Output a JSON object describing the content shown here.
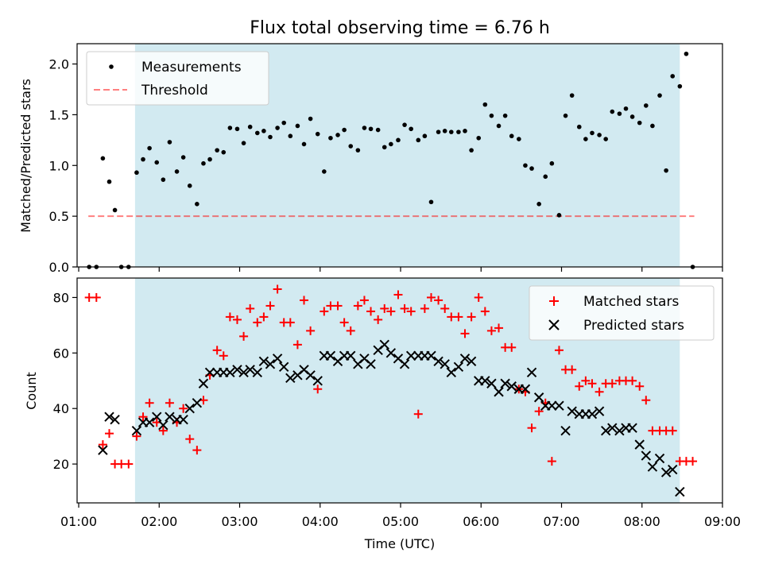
{
  "title": "Flux total observing time = 6.76 h",
  "x_label": "Time (UTC)",
  "x_ticks": [
    "01:00",
    "02:00",
    "03:00",
    "04:00",
    "05:00",
    "06:00",
    "07:00",
    "08:00",
    "09:00"
  ],
  "colors": {
    "observing_window": "#add8e6",
    "threshold": "#ff0000",
    "measurements": "#000000",
    "matched": "#ff0000",
    "predicted": "#000000"
  },
  "chart_data": [
    {
      "type": "scatter",
      "ylabel": "Matched/Predicted stars",
      "x_unit": "hours UTC",
      "xlim": [
        0.98,
        9.0
      ],
      "ylim": [
        0.0,
        2.2
      ],
      "yticks": [
        "0.0",
        "0.5",
        "1.0",
        "1.5",
        "2.0"
      ],
      "ytick_values": [
        0.0,
        0.5,
        1.0,
        1.5,
        2.0
      ],
      "shaded_window": [
        1.7,
        8.47
      ],
      "threshold": {
        "y": 0.5,
        "x_range": [
          1.12,
          8.65
        ]
      },
      "legend_position": "upper-left",
      "legend": {
        "measurements": "Measurements",
        "threshold": "Threshold"
      },
      "series": [
        {
          "name": "Measurements",
          "x": [
            1.13,
            1.22,
            1.3,
            1.38,
            1.45,
            1.53,
            1.62,
            1.72,
            1.8,
            1.88,
            1.97,
            2.05,
            2.13,
            2.22,
            2.3,
            2.38,
            2.47,
            2.55,
            2.63,
            2.72,
            2.8,
            2.88,
            2.97,
            3.05,
            3.13,
            3.22,
            3.3,
            3.38,
            3.47,
            3.55,
            3.63,
            3.72,
            3.8,
            3.88,
            3.97,
            4.05,
            4.13,
            4.22,
            4.3,
            4.38,
            4.47,
            4.55,
            4.63,
            4.72,
            4.8,
            4.88,
            4.97,
            5.05,
            5.13,
            5.22,
            5.3,
            5.38,
            5.47,
            5.55,
            5.63,
            5.72,
            5.8,
            5.88,
            5.97,
            6.05,
            6.13,
            6.22,
            6.3,
            6.38,
            6.47,
            6.55,
            6.63,
            6.72,
            6.8,
            6.88,
            6.97,
            7.05,
            7.13,
            7.22,
            7.3,
            7.38,
            7.47,
            7.55,
            7.63,
            7.72,
            7.8,
            7.88,
            7.97,
            8.05,
            8.13,
            8.22,
            8.3,
            8.38,
            8.47,
            8.55,
            8.63
          ],
          "y": [
            0.0,
            0.0,
            1.07,
            0.84,
            0.56,
            0.0,
            0.0,
            0.93,
            1.06,
            1.17,
            1.03,
            0.86,
            1.23,
            0.94,
            1.08,
            0.8,
            0.62,
            1.02,
            1.06,
            1.15,
            1.13,
            1.37,
            1.36,
            1.22,
            1.38,
            1.32,
            1.34,
            1.28,
            1.37,
            1.42,
            1.29,
            1.39,
            1.21,
            1.46,
            1.31,
            0.94,
            1.27,
            1.3,
            1.35,
            1.19,
            1.15,
            1.37,
            1.36,
            1.35,
            1.18,
            1.21,
            1.25,
            1.4,
            1.36,
            1.25,
            1.29,
            0.64,
            1.33,
            1.34,
            1.33,
            1.33,
            1.34,
            1.15,
            1.27,
            1.6,
            1.49,
            1.39,
            1.49,
            1.29,
            1.26,
            1.0,
            0.97,
            0.62,
            0.89,
            1.02,
            0.51,
            1.49,
            1.69,
            1.38,
            1.26,
            1.32,
            1.3,
            1.26,
            1.53,
            1.51,
            1.56,
            1.48,
            1.42,
            1.59,
            1.39,
            1.69,
            0.95,
            1.88,
            1.78,
            2.1,
            0.0
          ]
        }
      ]
    },
    {
      "type": "scatter",
      "ylabel": "Count",
      "x_unit": "hours UTC",
      "xlim": [
        0.98,
        9.0
      ],
      "ylim": [
        6,
        87
      ],
      "yticks": [
        "20",
        "40",
        "60",
        "80"
      ],
      "ytick_values": [
        20,
        40,
        60,
        80
      ],
      "shaded_window": [
        1.7,
        8.47
      ],
      "legend_position": "upper-right",
      "legend": {
        "matched": "Matched stars",
        "predicted": "Predicted stars"
      },
      "series": [
        {
          "name": "Matched stars",
          "x": [
            1.13,
            1.22,
            1.3,
            1.38,
            1.45,
            1.53,
            1.62,
            1.72,
            1.8,
            1.88,
            1.97,
            2.05,
            2.13,
            2.22,
            2.3,
            2.38,
            2.47,
            2.55,
            2.63,
            2.72,
            2.8,
            2.88,
            2.97,
            3.05,
            3.13,
            3.22,
            3.3,
            3.38,
            3.47,
            3.55,
            3.63,
            3.72,
            3.8,
            3.88,
            3.97,
            4.05,
            4.13,
            4.22,
            4.3,
            4.38,
            4.47,
            4.55,
            4.63,
            4.72,
            4.8,
            4.88,
            4.97,
            5.05,
            5.13,
            5.22,
            5.3,
            5.38,
            5.47,
            5.55,
            5.63,
            5.72,
            5.8,
            5.88,
            5.97,
            6.05,
            6.13,
            6.22,
            6.3,
            6.38,
            6.47,
            6.55,
            6.63,
            6.72,
            6.8,
            6.88,
            6.97,
            7.05,
            7.13,
            7.22,
            7.3,
            7.38,
            7.47,
            7.55,
            7.63,
            7.72,
            7.8,
            7.88,
            7.97,
            8.05,
            8.13,
            8.22,
            8.3,
            8.38,
            8.47,
            8.55,
            8.63
          ],
          "y": [
            80,
            80,
            27,
            31,
            20,
            20,
            20,
            30,
            37,
            42,
            35,
            32,
            42,
            35,
            40,
            29,
            25,
            43,
            52,
            61,
            59,
            73,
            72,
            66,
            76,
            71,
            73,
            77,
            83,
            71,
            71,
            63,
            79,
            68,
            47,
            75,
            77,
            77,
            71,
            68,
            77,
            79,
            75,
            72,
            76,
            75,
            81,
            76,
            75,
            38,
            76,
            80,
            79,
            76,
            73,
            73,
            67,
            73,
            80,
            75,
            68,
            69,
            62,
            62,
            47,
            46,
            33,
            39,
            42,
            21,
            61,
            54,
            54,
            48,
            50,
            49,
            46,
            49,
            49,
            50,
            50,
            50,
            48,
            43,
            32,
            32,
            32,
            32,
            21,
            21,
            21
          ]
        },
        {
          "name": "Predicted stars",
          "x": [
            1.3,
            1.38,
            1.45,
            1.72,
            1.8,
            1.88,
            1.97,
            2.05,
            2.13,
            2.22,
            2.3,
            2.38,
            2.47,
            2.55,
            2.63,
            2.72,
            2.8,
            2.88,
            2.97,
            3.05,
            3.13,
            3.22,
            3.3,
            3.38,
            3.47,
            3.55,
            3.63,
            3.72,
            3.8,
            3.88,
            3.97,
            4.05,
            4.13,
            4.22,
            4.3,
            4.38,
            4.47,
            4.55,
            4.63,
            4.72,
            4.8,
            4.88,
            4.97,
            5.05,
            5.13,
            5.22,
            5.3,
            5.38,
            5.47,
            5.55,
            5.63,
            5.72,
            5.8,
            5.88,
            5.97,
            6.05,
            6.13,
            6.22,
            6.3,
            6.38,
            6.47,
            6.55,
            6.63,
            6.72,
            6.8,
            6.88,
            6.97,
            7.05,
            7.13,
            7.22,
            7.3,
            7.38,
            7.47,
            7.55,
            7.63,
            7.72,
            7.8,
            7.88,
            7.97,
            8.05,
            8.13,
            8.22,
            8.3,
            8.38,
            8.47
          ],
          "y": [
            25,
            37,
            36,
            32,
            35,
            35,
            37,
            34,
            37,
            36,
            36,
            40,
            42,
            49,
            53,
            53,
            53,
            53,
            54,
            53,
            54,
            53,
            57,
            56,
            58,
            55,
            51,
            52,
            54,
            52,
            50,
            59,
            59,
            57,
            59,
            59,
            56,
            58,
            56,
            61,
            63,
            60,
            58,
            56,
            59,
            59,
            59,
            59,
            57,
            56,
            53,
            55,
            58,
            57,
            50,
            50,
            49,
            46,
            49,
            48,
            47,
            47,
            53,
            44,
            41,
            41,
            41,
            32,
            39,
            38,
            38,
            38,
            39,
            32,
            33,
            32,
            33,
            33,
            27,
            23,
            19,
            22,
            17,
            18,
            10
          ]
        }
      ]
    }
  ]
}
